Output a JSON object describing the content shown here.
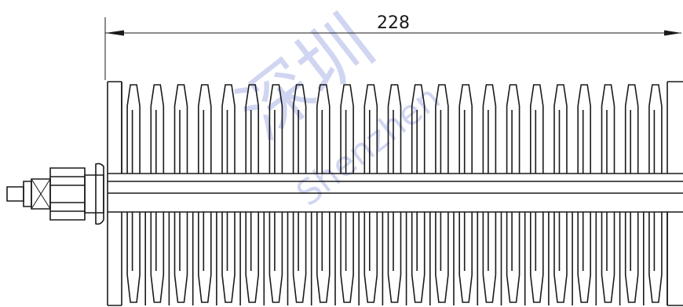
{
  "drawing": {
    "dimension_label": "228",
    "fin_count_per_row": 23,
    "watermark_chinese": "深圳",
    "watermark_latin": "Shenzhen"
  },
  "colors": {
    "line": "#1a1a1a",
    "watermark": "#aab3e6",
    "background": "#ffffff"
  }
}
